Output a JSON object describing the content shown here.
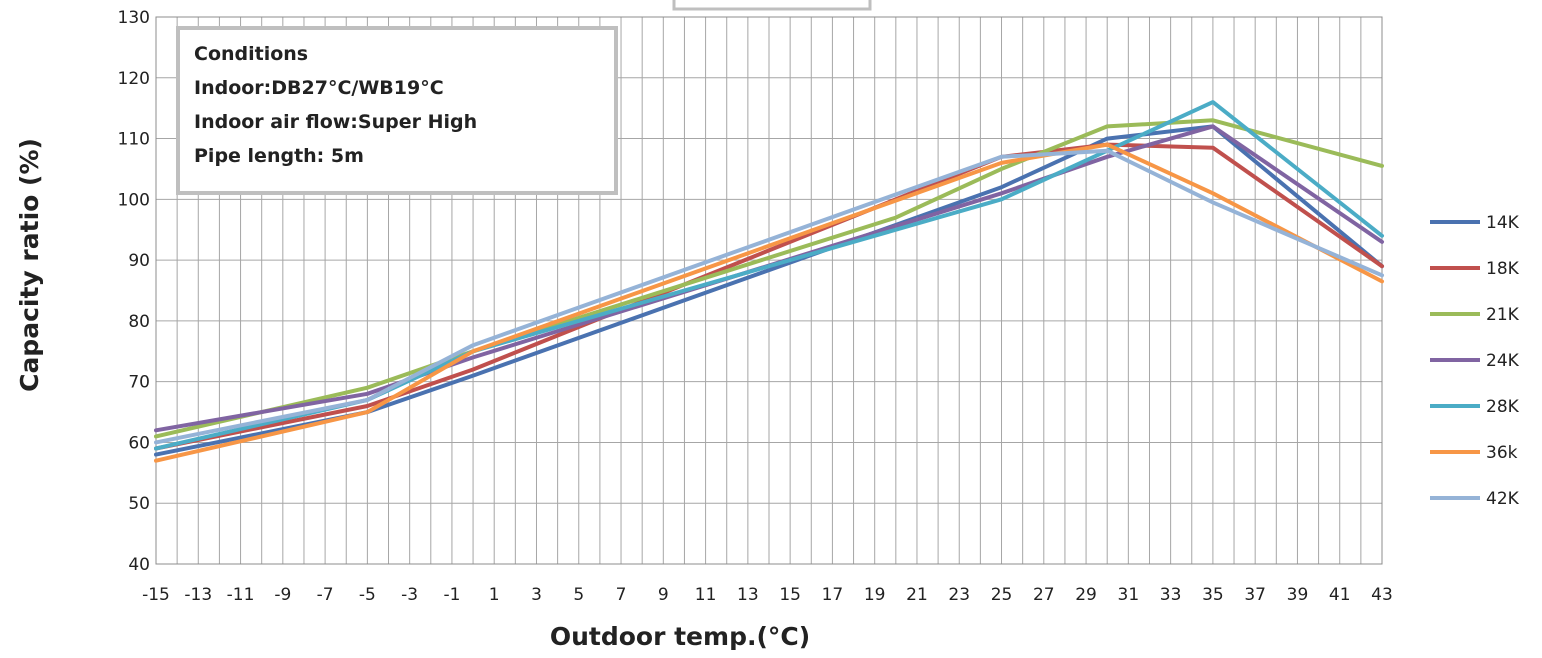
{
  "chart_data": {
    "type": "line",
    "title": "",
    "xlabel": "Outdoor temp.(°C)",
    "ylabel": "Capacity ratio (%)",
    "xlim": [
      -15,
      43
    ],
    "ylim": [
      40,
      130
    ],
    "x_tick_labels": [
      "-15",
      "-13",
      "-11",
      "-9",
      "-7",
      "-5",
      "-3",
      "-1",
      "1",
      "3",
      "5",
      "7",
      "9",
      "11",
      "13",
      "15",
      "17",
      "19",
      "21",
      "23",
      "25",
      "27",
      "29",
      "31",
      "33",
      "35",
      "37",
      "39",
      "41",
      "43"
    ],
    "y_tick_labels": [
      "40",
      "50",
      "60",
      "70",
      "80",
      "90",
      "100",
      "110",
      "120",
      "130"
    ],
    "grid": true,
    "legend_position": "right",
    "annotation": {
      "lines": [
        "Conditions",
        "Indoor:DB27°C/WB19°C",
        "Indoor air flow:Super High",
        "Pipe length: 5m"
      ]
    },
    "series": [
      {
        "name": "14K",
        "color": "#4a72b0",
        "points": [
          [
            -15,
            58
          ],
          [
            -5,
            65
          ],
          [
            0,
            71
          ],
          [
            25,
            102
          ],
          [
            30,
            110
          ],
          [
            35,
            112
          ],
          [
            43,
            89
          ]
        ]
      },
      {
        "name": "18K",
        "color": "#c0504d",
        "points": [
          [
            -15,
            59
          ],
          [
            -5,
            66
          ],
          [
            0,
            72
          ],
          [
            25,
            107
          ],
          [
            30,
            109
          ],
          [
            35,
            108.5
          ],
          [
            43,
            89
          ]
        ]
      },
      {
        "name": "21K",
        "color": "#9bbb59",
        "points": [
          [
            -15,
            61
          ],
          [
            -5,
            69
          ],
          [
            0,
            75
          ],
          [
            20,
            97
          ],
          [
            25,
            105
          ],
          [
            30,
            112
          ],
          [
            35,
            113
          ],
          [
            43,
            105.5
          ]
        ]
      },
      {
        "name": "24K",
        "color": "#8064a2",
        "points": [
          [
            -15,
            62
          ],
          [
            -5,
            68
          ],
          [
            0,
            74
          ],
          [
            25,
            101
          ],
          [
            30,
            107
          ],
          [
            35,
            112
          ],
          [
            43,
            93
          ]
        ]
      },
      {
        "name": "28K",
        "color": "#4bacc6",
        "points": [
          [
            -15,
            59
          ],
          [
            -5,
            67
          ],
          [
            0,
            75
          ],
          [
            25,
            100
          ],
          [
            30,
            108
          ],
          [
            35,
            116
          ],
          [
            43,
            94
          ]
        ]
      },
      {
        "name": "36k",
        "color": "#f79646",
        "points": [
          [
            -15,
            57
          ],
          [
            -5,
            65
          ],
          [
            0,
            75
          ],
          [
            25,
            106
          ],
          [
            30,
            109
          ],
          [
            35,
            101
          ],
          [
            43,
            86.5
          ]
        ]
      },
      {
        "name": "42K",
        "color": "#95b3d7",
        "points": [
          [
            -15,
            60
          ],
          [
            -5,
            67
          ],
          [
            0,
            76
          ],
          [
            25,
            107
          ],
          [
            30,
            108
          ],
          [
            35,
            99.5
          ],
          [
            43,
            87.5
          ]
        ]
      }
    ]
  }
}
